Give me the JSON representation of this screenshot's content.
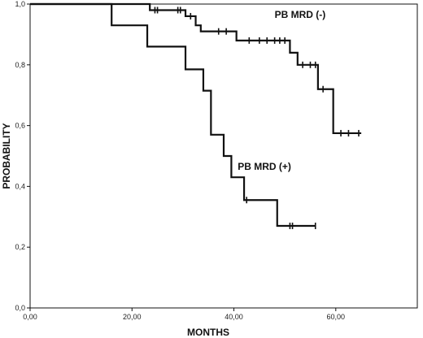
{
  "chart_data": {
    "type": "line",
    "step": true,
    "xlabel": "MONTHS",
    "ylabel": "PROBABILITY",
    "xlim": [
      0,
      76
    ],
    "ylim": [
      0,
      1
    ],
    "x_ticks": [
      0,
      20,
      40,
      60
    ],
    "x_tick_labels": [
      "0,00",
      "20,00",
      "40,00",
      "60,00"
    ],
    "y_ticks": [
      0,
      0.2,
      0.4,
      0.6,
      0.8,
      1.0
    ],
    "y_tick_labels": [
      "0,0",
      "0,2",
      "0,4",
      "0,6",
      "0,8",
      "1,0"
    ],
    "grid": false,
    "line_color": "#111111",
    "series": [
      {
        "name": "PB MRD (-)",
        "label_position": [
          53,
          0.955
        ],
        "steps": [
          [
            0,
            1.0
          ],
          [
            23.5,
            0.98
          ],
          [
            30.5,
            0.96
          ],
          [
            32.5,
            0.93
          ],
          [
            33.5,
            0.91
          ],
          [
            40.5,
            0.88
          ],
          [
            51,
            0.84
          ],
          [
            52.5,
            0.8
          ],
          [
            56.5,
            0.72
          ],
          [
            59.5,
            0.575
          ],
          [
            65,
            0.575
          ]
        ],
        "censored": [
          [
            24.5,
            0.98
          ],
          [
            25,
            0.98
          ],
          [
            29,
            0.98
          ],
          [
            29.5,
            0.98
          ],
          [
            31.5,
            0.96
          ],
          [
            37,
            0.91
          ],
          [
            38.5,
            0.91
          ],
          [
            43,
            0.88
          ],
          [
            45,
            0.88
          ],
          [
            46.5,
            0.88
          ],
          [
            48,
            0.88
          ],
          [
            49,
            0.88
          ],
          [
            50,
            0.88
          ],
          [
            53.5,
            0.8
          ],
          [
            55,
            0.8
          ],
          [
            56,
            0.8
          ],
          [
            57.5,
            0.72
          ],
          [
            61,
            0.575
          ],
          [
            62.5,
            0.575
          ],
          [
            64.5,
            0.575
          ]
        ]
      },
      {
        "name": "PB MRD (+)",
        "label_position": [
          46,
          0.455
        ],
        "steps": [
          [
            0,
            1.0
          ],
          [
            16,
            0.93
          ],
          [
            23,
            0.86
          ],
          [
            30.5,
            0.785
          ],
          [
            34,
            0.715
          ],
          [
            35.5,
            0.57
          ],
          [
            38,
            0.5
          ],
          [
            39.5,
            0.43
          ],
          [
            42,
            0.355
          ],
          [
            48.5,
            0.27
          ],
          [
            56,
            0.27
          ]
        ],
        "censored": [
          [
            42.5,
            0.355
          ],
          [
            51,
            0.27
          ],
          [
            51.5,
            0.27
          ],
          [
            56,
            0.27
          ]
        ]
      }
    ]
  }
}
